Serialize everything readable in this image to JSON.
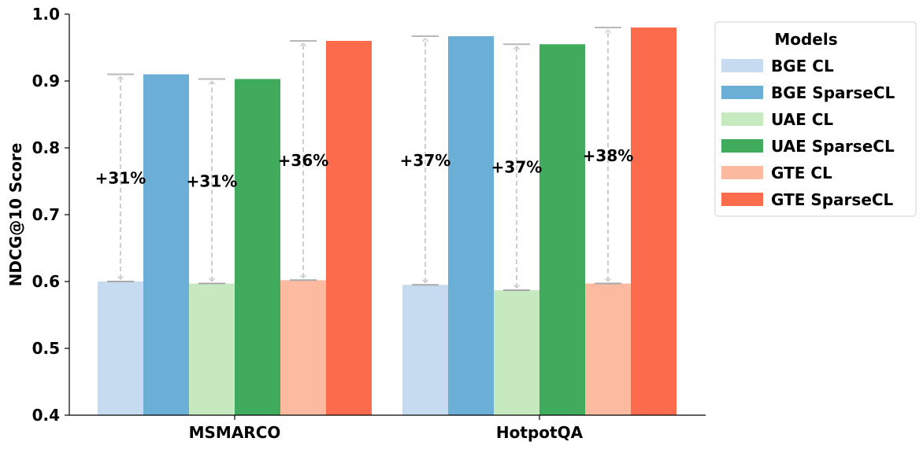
{
  "chart_data": {
    "type": "bar",
    "categories": [
      "MSMARCO",
      "HotpotQA"
    ],
    "ylabel": "NDCG@10 Score",
    "xlabel": "",
    "ylim": [
      0.4,
      1.0
    ],
    "yticks": [
      "0.4",
      "0.5",
      "0.6",
      "0.7",
      "0.8",
      "0.9",
      "1.0"
    ],
    "legend_title": "Models",
    "legend_position": "outside-top-right",
    "series": [
      {
        "name": "BGE CL",
        "color": "#c6dbef",
        "values": [
          0.6,
          0.595
        ]
      },
      {
        "name": "BGE SparseCL",
        "color": "#6baed6",
        "values": [
          0.91,
          0.967
        ]
      },
      {
        "name": "UAE CL",
        "color": "#c7e9c0",
        "values": [
          0.597,
          0.587
        ]
      },
      {
        "name": "UAE SparseCL",
        "color": "#41ab5d",
        "values": [
          0.903,
          0.955
        ]
      },
      {
        "name": "GTE CL",
        "color": "#fcbba1",
        "values": [
          0.602,
          0.597
        ]
      },
      {
        "name": "GTE SparseCL",
        "color": "#fc6c4c",
        "values": [
          0.96,
          0.98
        ]
      }
    ],
    "improvements": [
      {
        "category": 0,
        "model": "BGE",
        "label": "+31%"
      },
      {
        "category": 0,
        "model": "UAE",
        "label": "+31%"
      },
      {
        "category": 0,
        "model": "GTE",
        "label": "+36%"
      },
      {
        "category": 1,
        "model": "BGE",
        "label": "+37%"
      },
      {
        "category": 1,
        "model": "UAE",
        "label": "+37%"
      },
      {
        "category": 1,
        "model": "GTE",
        "label": "+38%"
      }
    ],
    "grid": false
  }
}
